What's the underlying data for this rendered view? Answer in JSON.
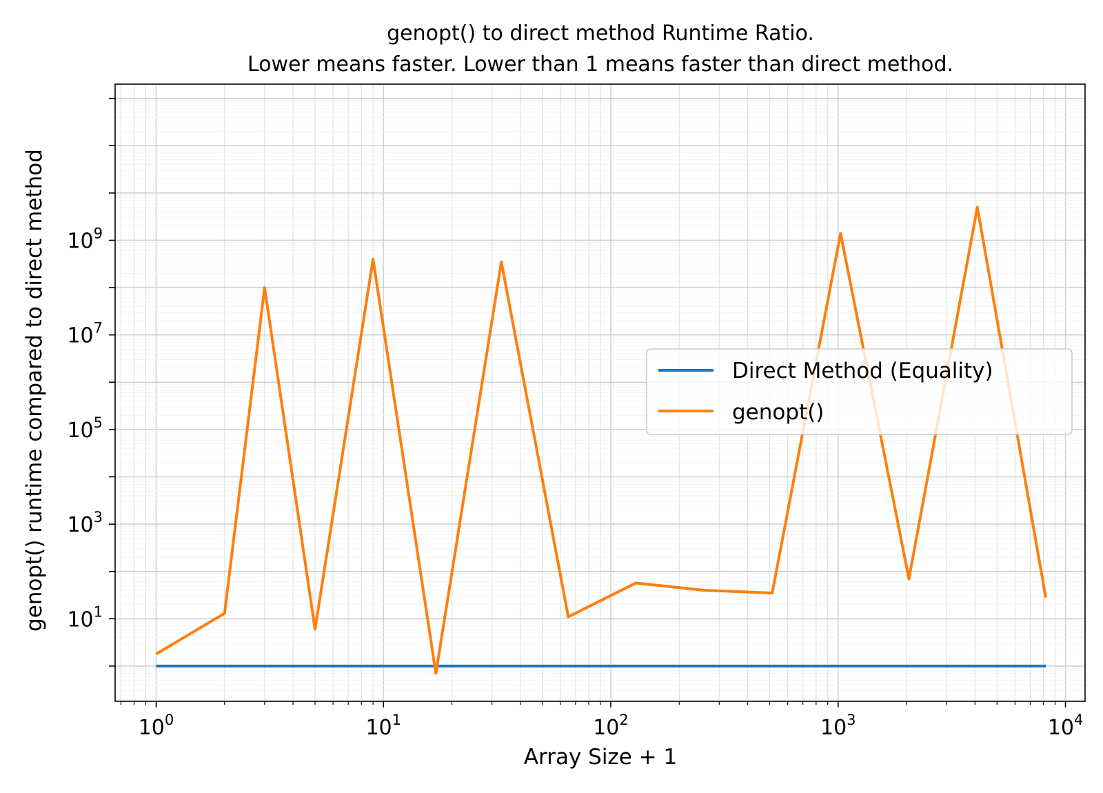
{
  "chart_data": {
    "type": "line",
    "title": "genopt() to direct method Runtime Ratio.",
    "subtitle": "Lower means faster. Lower than 1 means faster than direct method.",
    "xlabel": "Array Size + 1",
    "ylabel": "genopt() runtime compared to direct method",
    "xscale": "log",
    "yscale": "log",
    "xlim": [
      0.66,
      12200
    ],
    "ylim": [
      0.18,
      2000000000000
    ],
    "x_ticks": [
      1,
      10,
      100,
      1000,
      10000
    ],
    "x_tick_labels": [
      {
        "base": "10",
        "exp": "0"
      },
      {
        "base": "10",
        "exp": "1"
      },
      {
        "base": "10",
        "exp": "2"
      },
      {
        "base": "10",
        "exp": "3"
      },
      {
        "base": "10",
        "exp": "4"
      }
    ],
    "y_ticks": [
      10,
      1000,
      100000,
      10000000,
      1000000000
    ],
    "y_tick_labels": [
      {
        "base": "10",
        "exp": "1"
      },
      {
        "base": "10",
        "exp": "3"
      },
      {
        "base": "10",
        "exp": "5"
      },
      {
        "base": "10",
        "exp": "7"
      },
      {
        "base": "10",
        "exp": "9"
      }
    ],
    "grid": "both (major and minor)",
    "legend_position": "center-right",
    "series": [
      {
        "name": "Direct Method (Equality)",
        "color": "#1f77b4",
        "x": [
          1,
          8193
        ],
        "y": [
          1,
          1
        ]
      },
      {
        "name": "genopt()",
        "color": "#ff7f0e",
        "x": [
          1,
          2,
          3,
          5,
          9,
          17,
          33,
          65,
          129,
          257,
          513,
          1025,
          2049,
          4097,
          8193
        ],
        "y": [
          1.8,
          13,
          100000000,
          6,
          400000000,
          0.7,
          350000000,
          11,
          57,
          40,
          35,
          1400000000,
          70,
          5000000000,
          28
        ]
      }
    ]
  }
}
